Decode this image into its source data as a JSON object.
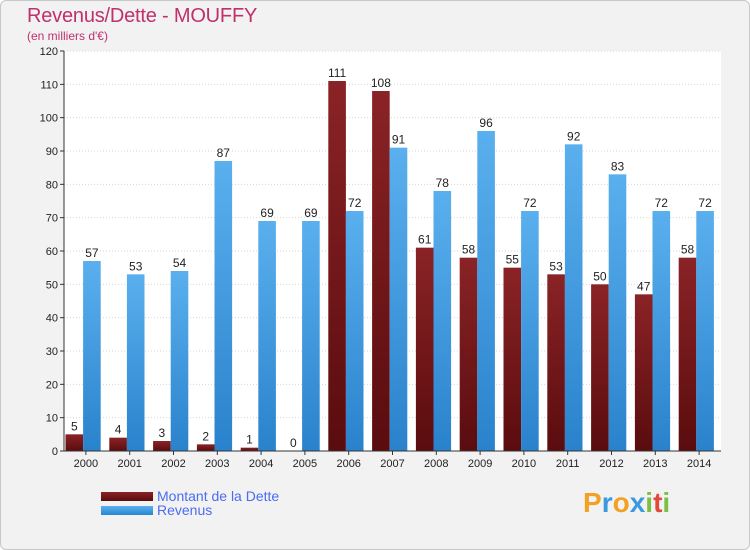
{
  "chart_data": {
    "type": "bar",
    "title": "Revenus/Dette - MOUFFY",
    "subtitle": "(en milliers d'€)",
    "categories": [
      "2000",
      "2001",
      "2002",
      "2003",
      "2004",
      "2005",
      "2006",
      "2007",
      "2008",
      "2009",
      "2010",
      "2011",
      "2012",
      "2013",
      "2014"
    ],
    "series": [
      {
        "name": "Montant de la Dette",
        "values": [
          5,
          4,
          3,
          2,
          1,
          0,
          111,
          108,
          61,
          58,
          55,
          53,
          50,
          47,
          58
        ],
        "color": "#7a1a1c"
      },
      {
        "name": "Revenus",
        "values": [
          57,
          53,
          54,
          87,
          69,
          69,
          72,
          91,
          78,
          96,
          72,
          92,
          83,
          72,
          72
        ],
        "color": "#3a9ae0"
      }
    ],
    "ylim": [
      0,
      120
    ],
    "yticks": [
      0,
      10,
      20,
      30,
      40,
      50,
      60,
      70,
      80,
      90,
      100,
      110,
      120
    ],
    "grid": true,
    "legend_position": "bottom-left"
  },
  "logo": {
    "letters": [
      "P",
      "r",
      "o",
      "x",
      "i",
      "t",
      "i"
    ],
    "colors": [
      "#f2a125",
      "#3a9ae0",
      "#f2a125",
      "#3a9ae0",
      "#7ac143",
      "#e04a3a",
      "#7ac143"
    ]
  }
}
